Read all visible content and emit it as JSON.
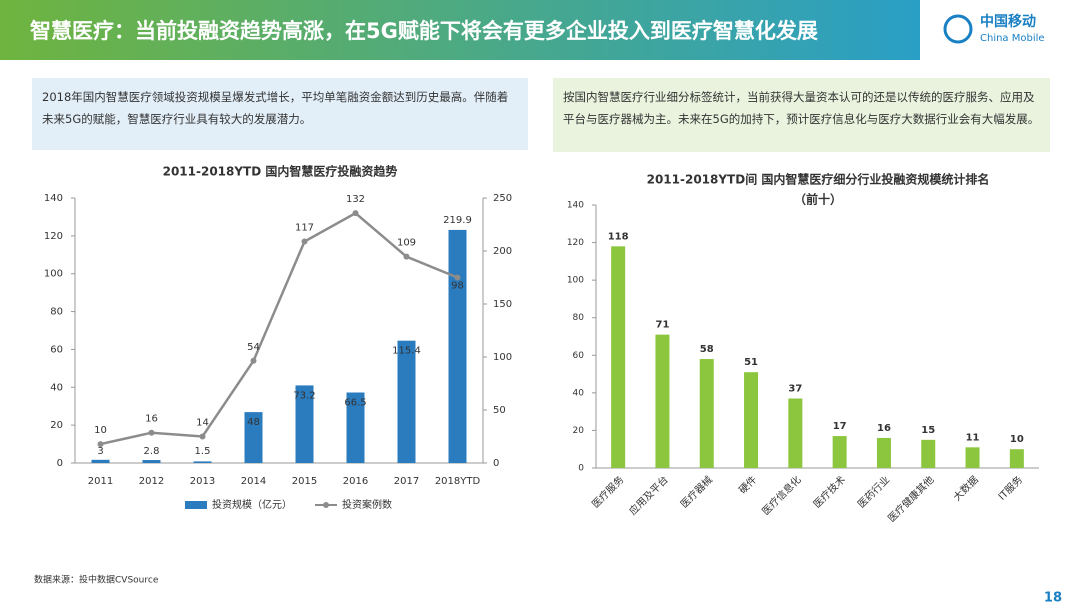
{
  "header": {
    "title": "智慧医疗：当前投融资趋势高涨，在5G赋能下将会有更多企业投入到医疗智慧化发展",
    "logo_cn": "中国移动",
    "logo_en": "China Mobile"
  },
  "panels": [
    {
      "text": "2018年国内智慧医疗领域投资规模呈爆发式增长，平均单笔融资金额达到历史最高。伴随着未来5G的赋能，智慧医疗行业具有较大的发展潜力。"
    },
    {
      "text": "按国内智慧医疗行业细分标签统计，当前获得大量资本认可的还是以传统的医疗服务、应用及平台与医疗器械为主。未来在5G的加持下，预计医疗信息化与医疗大数据行业会有大幅发展。"
    }
  ],
  "chart_data": [
    {
      "type": "combo",
      "title": "2011-2018YTD 国内智慧医疗投融资趋势",
      "categories": [
        "2011",
        "2012",
        "2013",
        "2014",
        "2015",
        "2016",
        "2017",
        "2018YTD"
      ],
      "series": [
        {
          "name": "投资规模（亿元）",
          "type": "bar",
          "axis": "y2",
          "color": "#2b7bbf",
          "values": [
            3,
            2.8,
            1.5,
            48,
            73.2,
            66.5,
            115.4,
            219.9
          ]
        },
        {
          "name": "投资案例数",
          "type": "line",
          "color": "#8c8c8c",
          "values": [
            10,
            16,
            14,
            54,
            117,
            132,
            109,
            98
          ]
        }
      ],
      "ylim": [
        0,
        140
      ],
      "yticks": [
        0,
        20,
        40,
        60,
        80,
        100,
        120,
        140
      ],
      "y2lim": [
        0,
        250
      ],
      "y2ticks": [
        0,
        50,
        100,
        150,
        200,
        250
      ],
      "legend": "bottom"
    },
    {
      "type": "bar",
      "title": [
        "2011-2018YTD间 国内智慧医疗细分行业投融资规模统计排名",
        "（前十）"
      ],
      "categories": [
        "医疗服务",
        "应用及平台",
        "医疗器械",
        "硬件",
        "医疗信息化",
        "医疗技术",
        "医药行业",
        "医疗健康其他",
        "大数据",
        "IT服务"
      ],
      "values": [
        118,
        71,
        58,
        51,
        37,
        17,
        16,
        15,
        11,
        10
      ],
      "color": "#8cc63f",
      "ylim": [
        0,
        140
      ],
      "yticks": [
        0,
        20,
        40,
        60,
        80,
        100,
        120,
        140
      ]
    }
  ],
  "footer": {
    "source": "数据来源：投中数据CVSource",
    "page": "18"
  }
}
